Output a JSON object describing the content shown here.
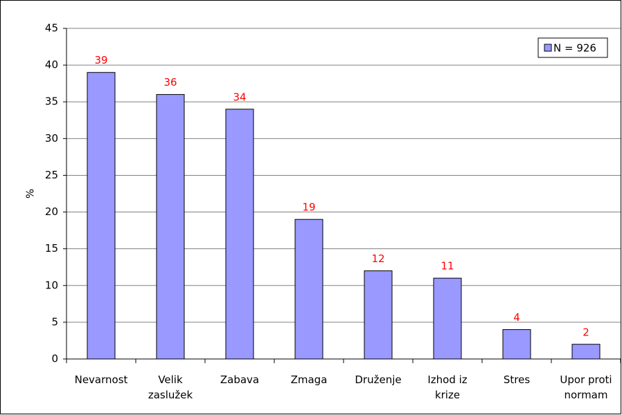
{
  "chart_data": {
    "type": "bar",
    "categories": [
      "Nevarnost",
      "Velik\nzaslužek",
      "Zabava",
      "Zmaga",
      "Druženje",
      "Izhod iz\nkrize",
      "Stres",
      "Upor proti\nnormam"
    ],
    "series": [
      {
        "name": "N = 926",
        "color": "#9999ff",
        "values": [
          39,
          36,
          34,
          19,
          12,
          11,
          4,
          2
        ]
      }
    ],
    "y_label": "%",
    "ylim": [
      0,
      45
    ],
    "yticks": [
      0,
      5,
      10,
      15,
      20,
      25,
      30,
      35,
      40,
      45
    ],
    "grid": true,
    "legend": "top-right",
    "value_label_color": "#ff0000"
  }
}
